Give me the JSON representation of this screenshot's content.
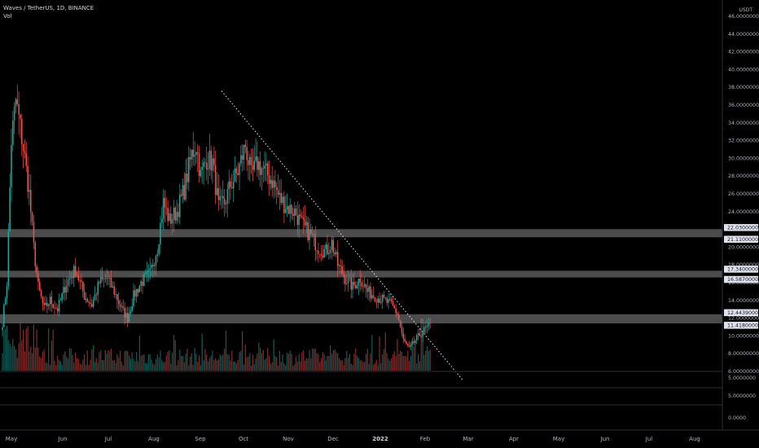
{
  "header": {
    "symbol_line": "Waves / TetherUS, 1D, BINANCE",
    "indicator": "Vol"
  },
  "price_axis": {
    "currency": "USDT",
    "ticks": [
      "46.00000000",
      "44.00000000",
      "42.00000000",
      "40.00000000",
      "38.00000000",
      "36.00000000",
      "34.00000000",
      "32.00000000",
      "30.00000000",
      "28.00000000",
      "26.00000000",
      "24.00000000",
      "22.00000000",
      "20.00000000",
      "18.00000000",
      "16.00000000",
      "14.00000000",
      "12.00000000",
      "10.00000000",
      "8.00000000",
      "6.00000000"
    ],
    "tick_values": [
      46,
      44,
      42,
      40,
      38,
      36,
      34,
      32,
      30,
      28,
      26,
      24,
      22,
      20,
      18,
      16,
      14,
      12,
      10,
      8,
      6
    ],
    "level_labels": [
      "22.03000000",
      "21.11000000",
      "17.34000000",
      "16.58700000",
      "12.44390000",
      "11.41800000"
    ]
  },
  "lower_pane_axis": {
    "ticks": [
      "5.0000000",
      "5.0000000",
      "0.0000"
    ]
  },
  "time_axis": {
    "labels": [
      "May",
      "Jun",
      "Jul",
      "Aug",
      "Sep",
      "Oct",
      "Nov",
      "Dec",
      "2022",
      "Feb",
      "Mar",
      "Apr",
      "May",
      "Jun",
      "Jul",
      "Aug"
    ],
    "year_label": "2022"
  },
  "zones": [
    {
      "top": 22.03,
      "bottom": 21.11
    },
    {
      "top": 17.34,
      "bottom": 16.587
    },
    {
      "top": 12.4439,
      "bottom": 11.418
    }
  ],
  "trendline": {
    "start": {
      "date": "2021-09-22",
      "price": 37.6
    },
    "end": {
      "date": "2022-03-03",
      "price": 5.0
    }
  },
  "colors": {
    "background": "#000000",
    "up": "#26a69a",
    "down": "#ef5350",
    "zone": "#c8c8c8",
    "axis_text": "#b2b5be",
    "label_bg": "#e0e3eb"
  },
  "chart_data": {
    "type": "candlestick",
    "series_name": "Waves / TetherUS",
    "timeframe": "1D",
    "x_range": [
      "2021-04-28",
      "2022-02-10"
    ],
    "ylim": [
      5,
      46
    ],
    "close_path": [
      [
        "2021-04-28",
        11.5
      ],
      [
        "2021-05-01",
        16.0
      ],
      [
        "2021-05-04",
        32.0
      ],
      [
        "2021-05-07",
        36.5
      ],
      [
        "2021-05-10",
        33.5
      ],
      [
        "2021-05-13",
        30.0
      ],
      [
        "2021-05-16",
        26.0
      ],
      [
        "2021-05-19",
        20.0
      ],
      [
        "2021-05-22",
        15.5
      ],
      [
        "2021-05-26",
        13.0
      ],
      [
        "2021-05-30",
        14.0
      ],
      [
        "2021-06-04",
        13.0
      ],
      [
        "2021-06-10",
        16.0
      ],
      [
        "2021-06-16",
        17.5
      ],
      [
        "2021-06-22",
        14.5
      ],
      [
        "2021-06-27",
        13.5
      ],
      [
        "2021-07-02",
        16.0
      ],
      [
        "2021-07-07",
        16.5
      ],
      [
        "2021-07-12",
        15.0
      ],
      [
        "2021-07-17",
        13.0
      ],
      [
        "2021-07-21",
        12.0
      ],
      [
        "2021-07-25",
        14.5
      ],
      [
        "2021-07-30",
        16.0
      ],
      [
        "2021-08-05",
        17.0
      ],
      [
        "2021-08-10",
        20.0
      ],
      [
        "2021-08-14",
        25.0
      ],
      [
        "2021-08-18",
        23.0
      ],
      [
        "2021-08-23",
        24.0
      ],
      [
        "2021-08-28",
        26.5
      ],
      [
        "2021-09-02",
        30.5
      ],
      [
        "2021-09-05",
        31.5
      ],
      [
        "2021-09-08",
        28.0
      ],
      [
        "2021-09-12",
        30.0
      ],
      [
        "2021-09-16",
        29.5
      ],
      [
        "2021-09-20",
        24.5
      ],
      [
        "2021-09-24",
        25.0
      ],
      [
        "2021-09-28",
        27.0
      ],
      [
        "2021-10-03",
        28.5
      ],
      [
        "2021-10-08",
        31.5
      ],
      [
        "2021-10-12",
        28.0
      ],
      [
        "2021-10-16",
        29.5
      ],
      [
        "2021-10-21",
        28.5
      ],
      [
        "2021-10-26",
        27.5
      ],
      [
        "2021-10-31",
        25.5
      ],
      [
        "2021-11-05",
        24.5
      ],
      [
        "2021-11-10",
        24.0
      ],
      [
        "2021-11-15",
        22.5
      ],
      [
        "2021-11-20",
        21.5
      ],
      [
        "2021-11-26",
        20.0
      ],
      [
        "2021-12-01",
        19.5
      ],
      [
        "2021-12-05",
        20.5
      ],
      [
        "2021-12-09",
        18.0
      ],
      [
        "2021-12-14",
        16.5
      ],
      [
        "2021-12-19",
        15.5
      ],
      [
        "2021-12-24",
        16.5
      ],
      [
        "2021-12-29",
        15.0
      ],
      [
        "2022-01-03",
        14.5
      ],
      [
        "2022-01-09",
        14.0
      ],
      [
        "2022-01-14",
        13.5
      ],
      [
        "2022-01-18",
        12.5
      ],
      [
        "2022-01-22",
        9.5
      ],
      [
        "2022-01-26",
        8.5
      ],
      [
        "2022-01-30",
        9.5
      ],
      [
        "2022-02-04",
        10.5
      ],
      [
        "2022-02-09",
        11.2
      ]
    ]
  }
}
